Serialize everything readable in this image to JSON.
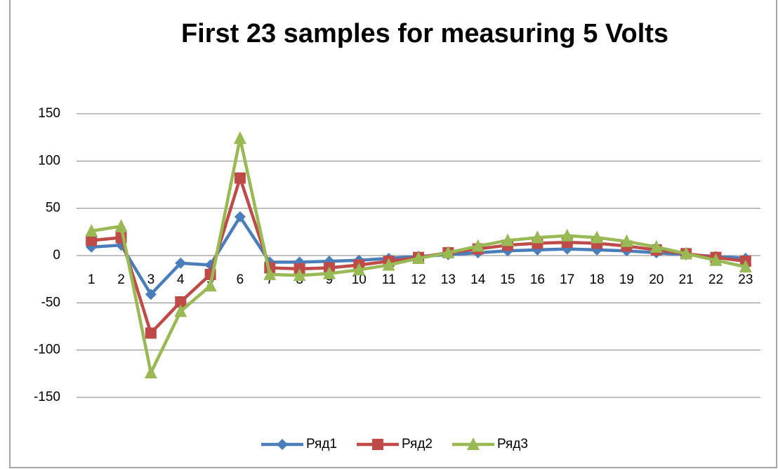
{
  "chart_data": {
    "type": "line",
    "title": "First 23 samples for measuring 5 Volts",
    "categories": [
      "1",
      "2",
      "3",
      "4",
      "5",
      "6",
      "7",
      "8",
      "9",
      "10",
      "11",
      "12",
      "13",
      "14",
      "15",
      "16",
      "17",
      "18",
      "19",
      "20",
      "21",
      "22",
      "23"
    ],
    "series": [
      {
        "name": "Ряд1",
        "color": "#4a7ebb",
        "marker": "diamond",
        "values": [
          9,
          11,
          -41,
          -8,
          -10,
          41,
          -7,
          -7,
          -6,
          -5,
          -3,
          -1,
          1,
          3,
          5,
          6,
          7,
          6,
          5,
          3,
          1,
          -1,
          -3
        ]
      },
      {
        "name": "Ряд2",
        "color": "#be4b48",
        "marker": "square",
        "values": [
          16,
          19,
          -82,
          -49,
          -20,
          82,
          -13,
          -14,
          -13,
          -10,
          -6,
          -2,
          3,
          7,
          11,
          13,
          14,
          13,
          10,
          6,
          2,
          -2,
          -6
        ]
      },
      {
        "name": "Ряд3",
        "color": "#98b954",
        "marker": "triangle",
        "values": [
          26,
          31,
          -124,
          -59,
          -32,
          124,
          -20,
          -21,
          -19,
          -15,
          -10,
          -3,
          3,
          10,
          16,
          19,
          21,
          19,
          15,
          9,
          2,
          -5,
          -12
        ]
      }
    ],
    "ylim": [
      -150,
      150
    ],
    "yticks": [
      -150,
      -100,
      -50,
      0,
      50,
      100,
      150
    ],
    "grid": true,
    "legend": "bottom"
  }
}
